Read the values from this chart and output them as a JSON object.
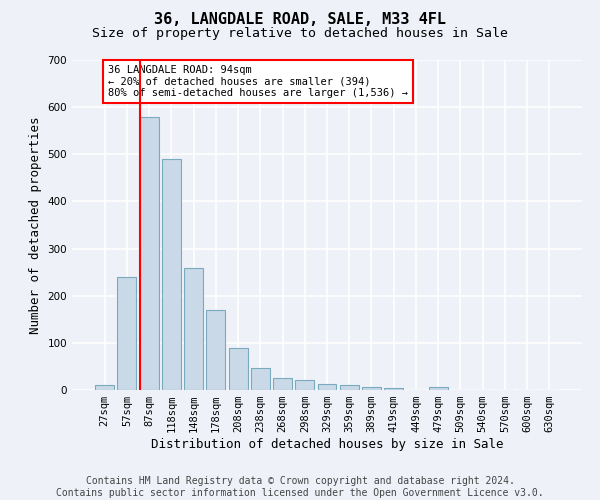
{
  "title": "36, LANGDALE ROAD, SALE, M33 4FL",
  "subtitle": "Size of property relative to detached houses in Sale",
  "xlabel": "Distribution of detached houses by size in Sale",
  "ylabel": "Number of detached properties",
  "categories": [
    "27sqm",
    "57sqm",
    "87sqm",
    "118sqm",
    "148sqm",
    "178sqm",
    "208sqm",
    "238sqm",
    "268sqm",
    "298sqm",
    "329sqm",
    "359sqm",
    "389sqm",
    "419sqm",
    "449sqm",
    "479sqm",
    "509sqm",
    "540sqm",
    "570sqm",
    "600sqm",
    "630sqm"
  ],
  "values": [
    10,
    240,
    580,
    490,
    258,
    170,
    90,
    47,
    25,
    22,
    12,
    10,
    7,
    5,
    0,
    7,
    0,
    0,
    0,
    0,
    0
  ],
  "bar_color": "#c9d9e8",
  "bar_edge_color": "#7aaabf",
  "red_line_index": 2,
  "ylim": [
    0,
    700
  ],
  "yticks": [
    0,
    100,
    200,
    300,
    400,
    500,
    600,
    700
  ],
  "annotation_text": "36 LANGDALE ROAD: 94sqm\n← 20% of detached houses are smaller (394)\n80% of semi-detached houses are larger (1,536) →",
  "annotation_box_color": "white",
  "annotation_box_edge": "red",
  "footer_line1": "Contains HM Land Registry data © Crown copyright and database right 2024.",
  "footer_line2": "Contains public sector information licensed under the Open Government Licence v3.0.",
  "background_color": "#eef2f8",
  "grid_color": "white",
  "title_fontsize": 11,
  "subtitle_fontsize": 9.5,
  "axis_label_fontsize": 9,
  "tick_fontsize": 7.5,
  "footer_fontsize": 7,
  "ylabel_fontsize": 9
}
